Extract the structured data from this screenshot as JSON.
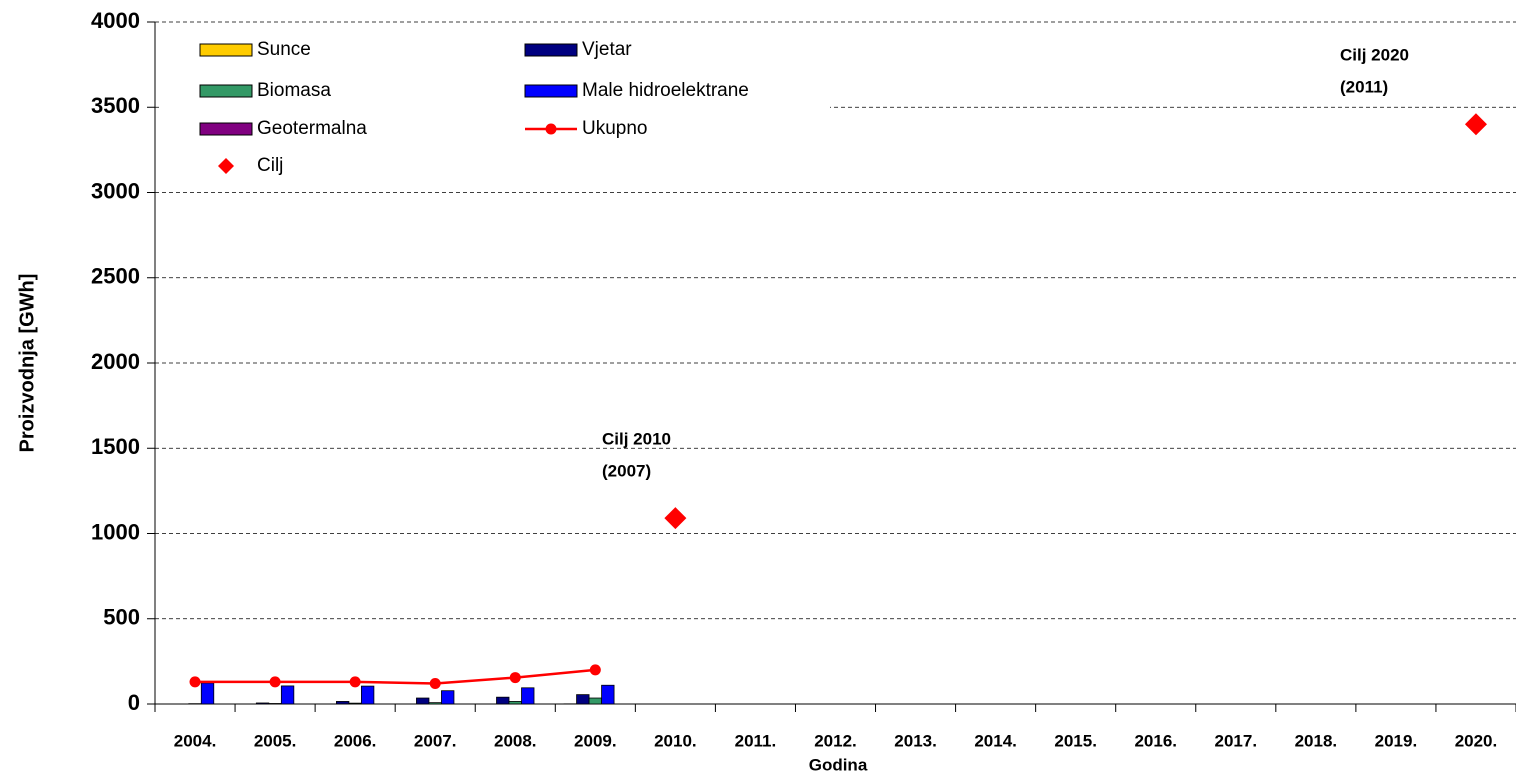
{
  "chart_data": {
    "type": "bar",
    "x_label": "Godina",
    "y_label": "Proizvodnja [GWh]",
    "categories": [
      "2004.",
      "2005.",
      "2006.",
      "2007.",
      "2008.",
      "2009.",
      "2010.",
      "2011.",
      "2012.",
      "2013.",
      "2014.",
      "2015.",
      "2016.",
      "2017.",
      "2018.",
      "2019.",
      "2020."
    ],
    "series": [
      {
        "name": "Sunce",
        "type": "bar",
        "color": "#ffcc00",
        "values": [
          0,
          0,
          0,
          0,
          0,
          1,
          null,
          null,
          null,
          null,
          null,
          null,
          null,
          null,
          null,
          null,
          null
        ]
      },
      {
        "name": "Vjetar",
        "type": "bar",
        "color": "#000080",
        "values": [
          0,
          6,
          15,
          35,
          40,
          55,
          null,
          null,
          null,
          null,
          null,
          null,
          null,
          null,
          null,
          null,
          null
        ]
      },
      {
        "name": "Biomasa",
        "type": "bar",
        "color": "#339966",
        "values": [
          2,
          3,
          5,
          8,
          15,
          35,
          null,
          null,
          null,
          null,
          null,
          null,
          null,
          null,
          null,
          null,
          null
        ]
      },
      {
        "name": "Male hidroelektrane",
        "type": "bar",
        "color": "#0000ff",
        "values": [
          123,
          106,
          105,
          78,
          95,
          110,
          null,
          null,
          null,
          null,
          null,
          null,
          null,
          null,
          null,
          null,
          null
        ]
      },
      {
        "name": "Geotermalna",
        "type": "bar",
        "color": "#800080",
        "values": [
          0,
          0,
          0,
          0,
          0,
          0,
          null,
          null,
          null,
          null,
          null,
          null,
          null,
          null,
          null,
          null,
          null
        ]
      },
      {
        "name": "Ukupno",
        "type": "line",
        "color": "#ff0000",
        "values": [
          130,
          130,
          130,
          120,
          155,
          200,
          null,
          null,
          null,
          null,
          null,
          null,
          null,
          null,
          null,
          null,
          null
        ]
      },
      {
        "name": "Cilj",
        "type": "scatter",
        "color": "#ff0000",
        "values": [
          null,
          null,
          null,
          null,
          null,
          null,
          1090,
          null,
          null,
          null,
          null,
          null,
          null,
          null,
          null,
          null,
          3400
        ]
      }
    ],
    "annotations": [
      "Cilj 2010",
      "(2007)",
      "Cilj 2020",
      "(2011)"
    ],
    "ylim": [
      0,
      4000
    ],
    "yticks": [
      0,
      500,
      1000,
      1500,
      2000,
      2500,
      3000,
      3500,
      4000
    ],
    "grid": true,
    "legend": "top-left"
  }
}
